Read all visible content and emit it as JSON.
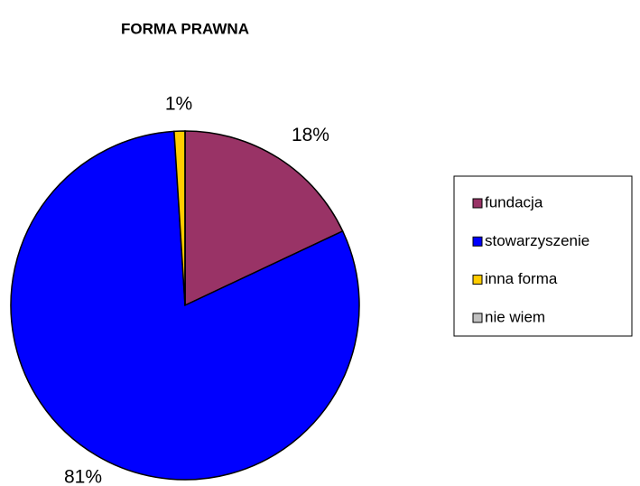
{
  "chart_data": {
    "type": "pie",
    "title": "FORMA PRAWNA",
    "categories": [
      "fundacja",
      "stowarzyszenie",
      "inna forma",
      "nie wiem"
    ],
    "values": [
      18,
      81,
      1,
      0
    ],
    "value_labels": [
      "18%",
      "81%",
      "1%",
      null
    ],
    "colors": [
      "#993366",
      "#0000ff",
      "#ffcc00",
      "#c0c0c0"
    ],
    "legend": "right"
  }
}
